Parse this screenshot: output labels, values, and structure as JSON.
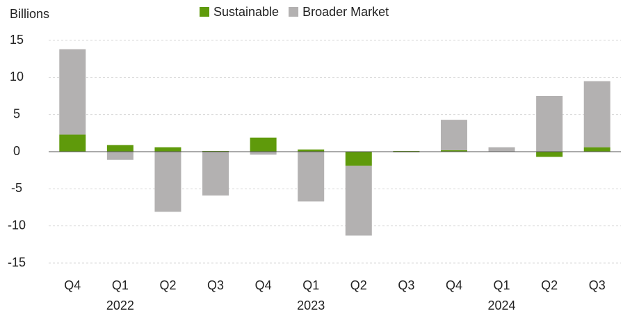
{
  "chart_data": {
    "type": "stacked_bar",
    "y_axis_label": "Billions",
    "categories": [
      "Q4",
      "Q1",
      "Q2",
      "Q3",
      "Q4",
      "Q1",
      "Q2",
      "Q3",
      "Q4",
      "Q1",
      "Q2",
      "Q3"
    ],
    "category_years": [
      null,
      "2022",
      null,
      null,
      null,
      "2023",
      null,
      null,
      null,
      "2024",
      null,
      null
    ],
    "series": [
      {
        "name": "Sustainable",
        "color": "#5f9a0b",
        "values": [
          2.3,
          0.9,
          0.6,
          0.1,
          1.9,
          0.3,
          -1.9,
          0.1,
          0.2,
          0,
          -0.7,
          0.6
        ]
      },
      {
        "name": "Broader Market",
        "color": "#b3b1b1",
        "values": [
          11.5,
          -1.1,
          -8.1,
          -5.9,
          -0.4,
          -6.7,
          -9.4,
          -0.1,
          4.1,
          0.6,
          7.5,
          8.9
        ]
      }
    ],
    "ylim": [
      -17,
      15
    ],
    "yticks": [
      -15,
      -10,
      -5,
      0,
      5,
      10,
      15
    ],
    "grid": true,
    "legend": "top"
  }
}
